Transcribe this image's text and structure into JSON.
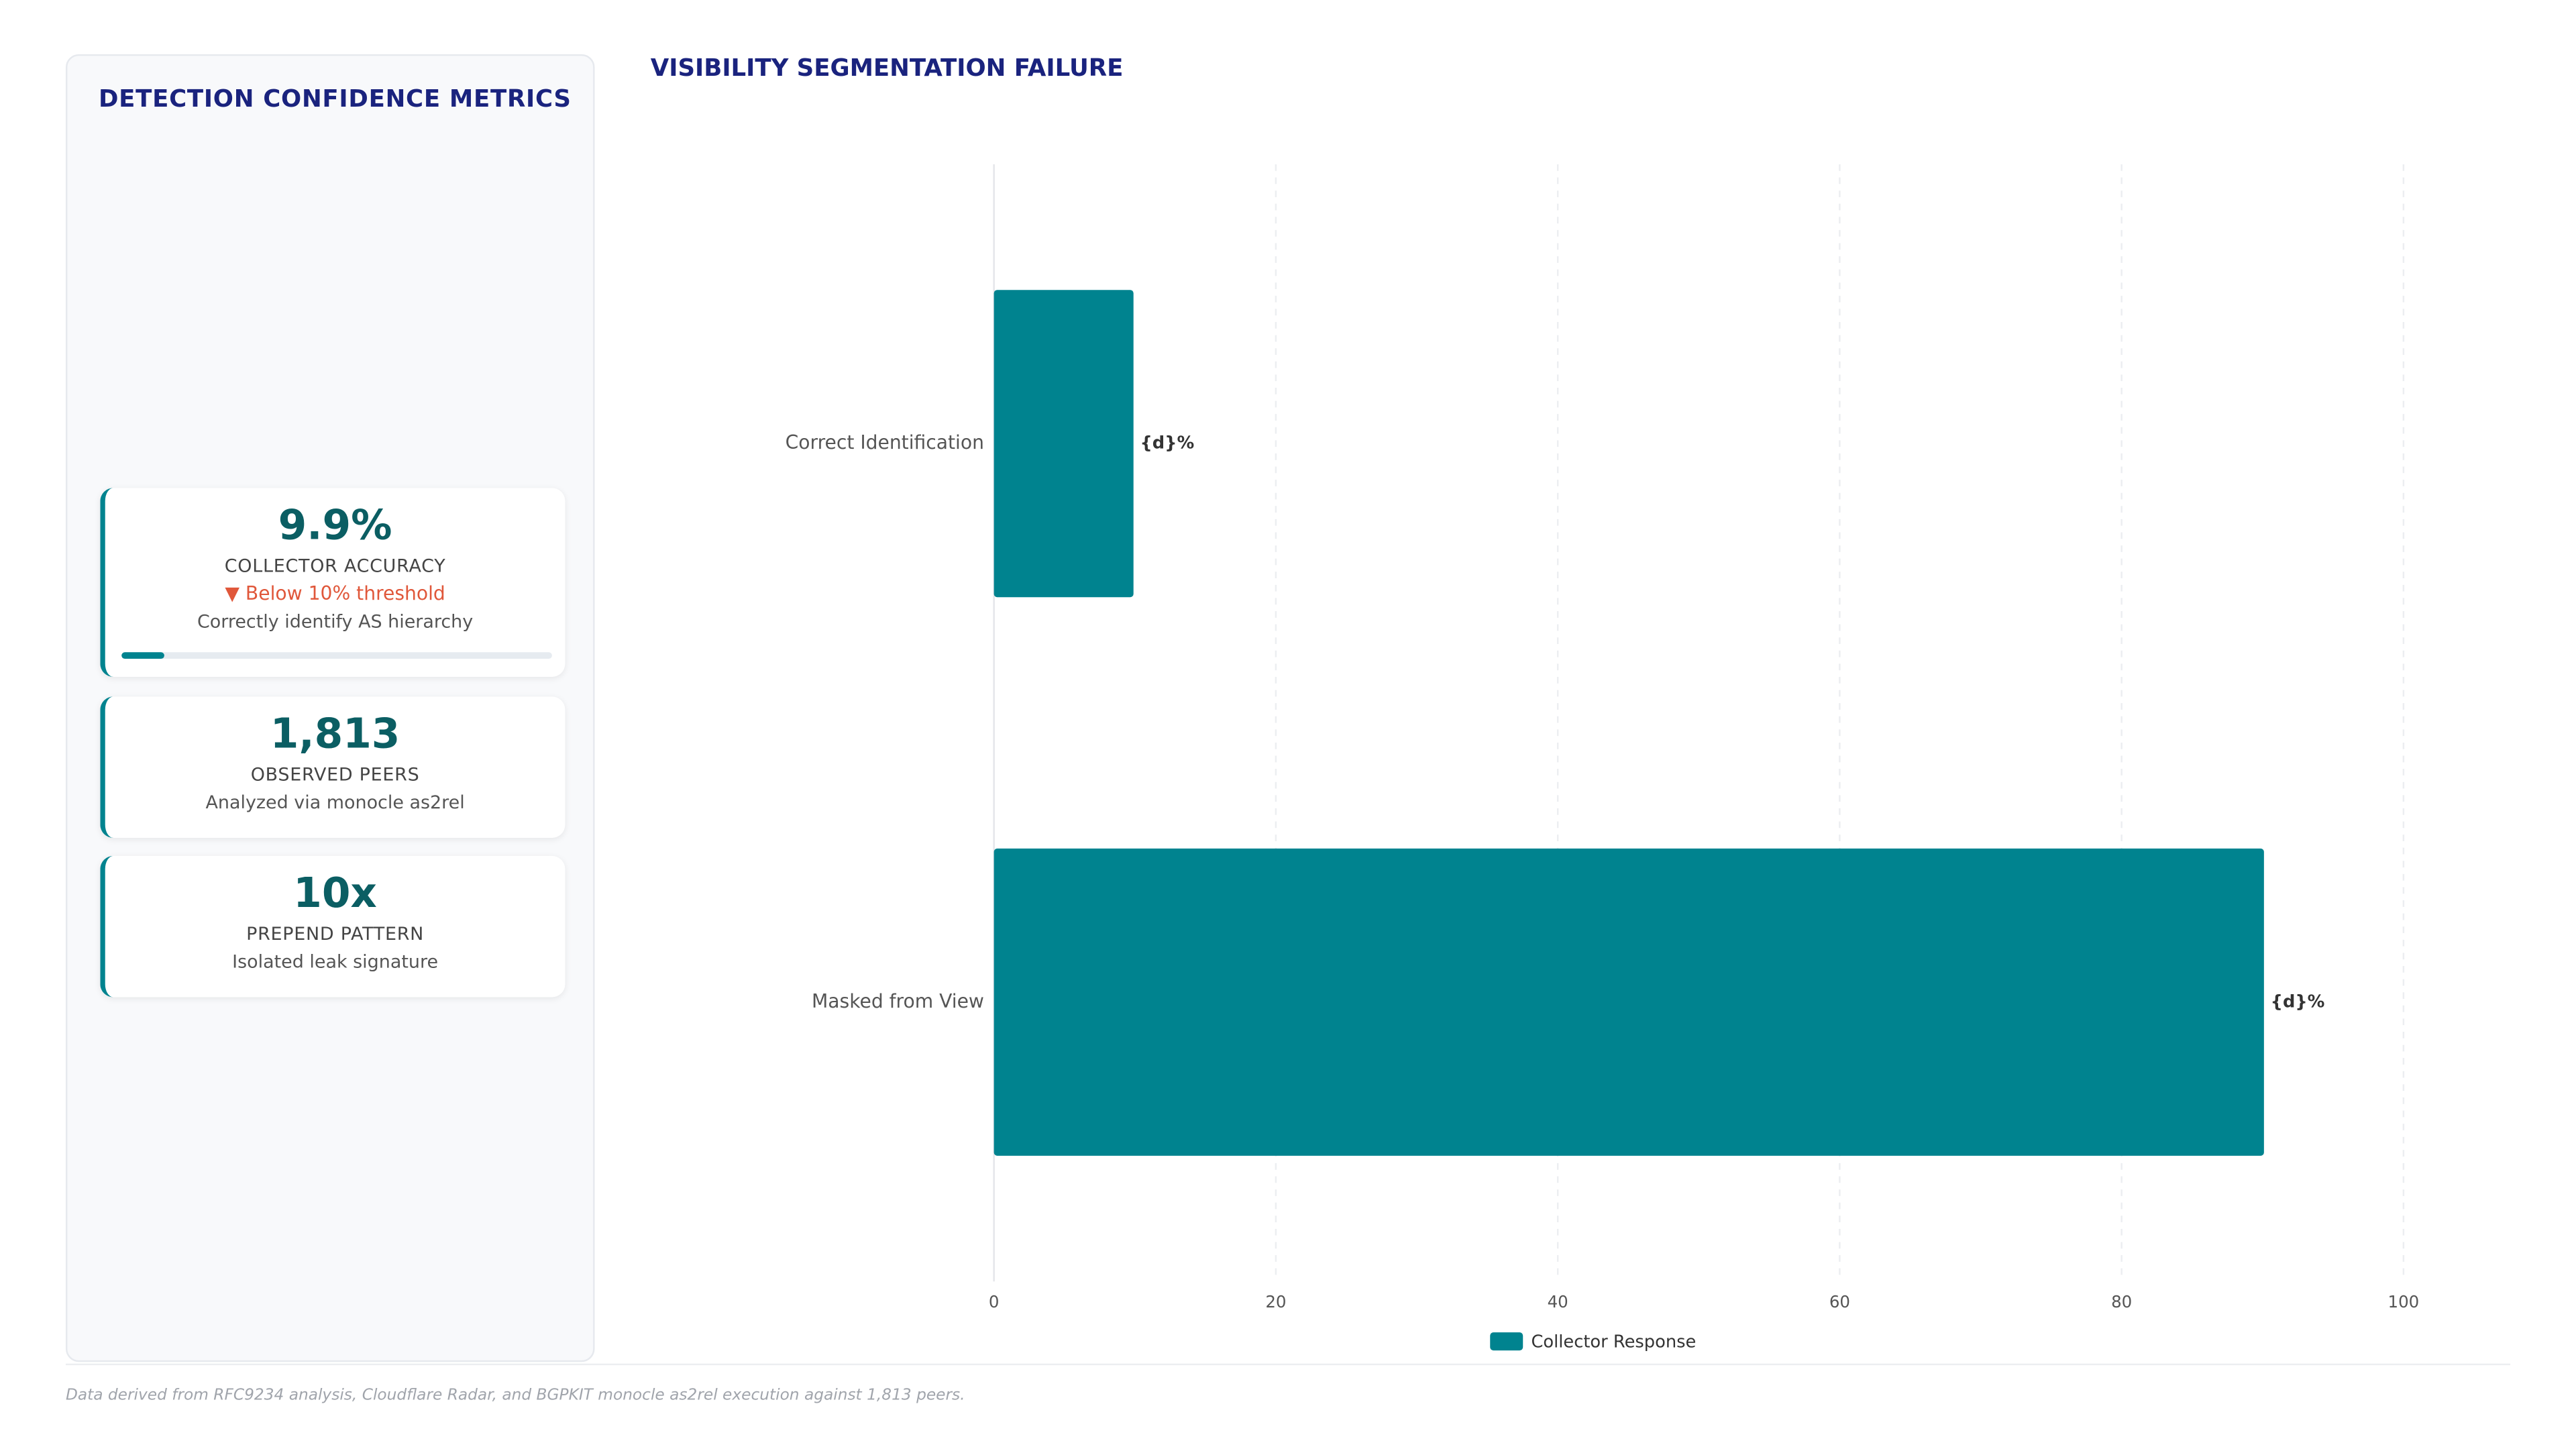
{
  "sidebar": {
    "title": "DETECTION CONFIDENCE METRICS",
    "cards": [
      {
        "value": "9.9%",
        "label": "COLLECTOR ACCURACY",
        "note": "▼ Below 10% threshold",
        "description": "Correctly identify AS hierarchy",
        "progress": 9.9
      },
      {
        "value": "1,813",
        "label": "OBSERVED PEERS",
        "description": "Analyzed via monocle as2rel"
      },
      {
        "value": "10x",
        "label": "PREPEND PATTERN",
        "description": "Isolated leak signature"
      }
    ]
  },
  "chart_data": {
    "type": "hbar",
    "title": "VISIBILITY SEGMENTATION FAILURE",
    "categories": [
      "Correct Identification",
      "Masked from View"
    ],
    "series": [
      {
        "name": "Collector Response",
        "color": "#00838f",
        "values": [
          9.9,
          90.1
        ],
        "value_labels": [
          "{d}%",
          "{d}%"
        ]
      }
    ],
    "xlim": [
      0,
      100
    ],
    "xticks": [
      0,
      20,
      40,
      60,
      80,
      100
    ],
    "grid": true
  },
  "footnote": "Data derived from RFC9234 analysis, Cloudflare Radar, and BGPKIT monocle as2rel execution against 1,813 peers."
}
